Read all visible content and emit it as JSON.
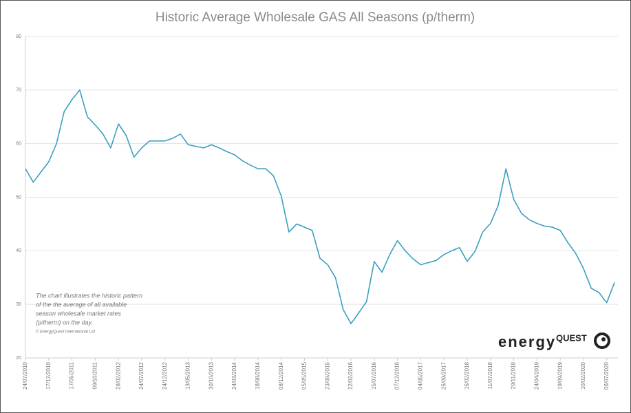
{
  "chart_data": {
    "type": "line",
    "title": "Historic Average Wholesale GAS All Seasons (p/therm)",
    "annotation": [
      "The chart illustrates the historic pattern",
      "of the the average of all available",
      "season wholesale market rates",
      "(p/therm) on the day."
    ],
    "copyright": "© EnergyQuest International Ltd",
    "logo": {
      "word": "energy",
      "brand": "QUEST"
    },
    "categories": [
      "24/07/2010",
      null,
      null,
      "17/12/2010",
      null,
      null,
      "17/05/2011",
      null,
      null,
      "09/10/2011",
      null,
      null,
      "28/02/2012",
      null,
      null,
      "24/07/2012",
      null,
      null,
      "24/12/2012",
      null,
      null,
      "13/05/2013",
      null,
      null,
      "30/10/2013",
      null,
      null,
      "24/03/2014",
      null,
      null,
      "18/08/2014",
      null,
      null,
      "08/12/2014",
      null,
      null,
      "05/05/2015",
      null,
      null,
      "23/09/2015",
      null,
      null,
      "22/02/2016",
      null,
      null,
      "15/07/2016",
      null,
      null,
      "07/12/2016",
      null,
      null,
      "04/05/2017",
      null,
      null,
      "25/09/2017",
      null,
      null,
      "16/02/2018",
      null,
      null,
      "11/07/2018",
      null,
      null,
      "29/11/2018",
      null,
      null,
      "24/04/2019",
      null,
      null,
      "19/09/2019",
      null,
      null,
      "10/02/2020",
      null,
      null,
      "06/07/2020",
      null
    ],
    "series": [
      {
        "color": "#3a9fc0",
        "values": [
          55.3,
          52.8,
          54.7,
          56.6,
          60,
          66,
          68.2,
          70,
          65,
          63.5,
          61.8,
          59.2,
          63.7,
          61.5,
          57.5,
          59.2,
          60.5,
          60.5,
          60.5,
          61,
          61.8,
          59.8,
          59.5,
          59.2,
          59.8,
          59.2,
          58.5,
          57.9,
          56.8,
          56,
          55.3,
          55.3,
          54,
          50.2,
          43.5,
          45,
          44.4,
          43.8,
          38.6,
          37.4,
          35,
          29,
          26.4,
          28.4,
          30.5,
          38,
          36,
          39.3,
          41.9,
          40,
          38.5,
          37.4,
          37.8,
          38.2,
          39.3,
          40,
          40.6,
          38,
          39.9,
          43.5,
          45.1,
          48.5,
          55.3,
          49.6,
          47,
          45.8,
          45.1,
          44.6,
          44.4,
          43.8,
          41.5,
          39.5,
          36.7,
          33,
          32.2,
          30.3,
          34.1
        ]
      }
    ],
    "ylim": [
      20,
      80
    ],
    "yticks": [
      20,
      30,
      40,
      50,
      60,
      70,
      80
    ],
    "grid": true
  }
}
